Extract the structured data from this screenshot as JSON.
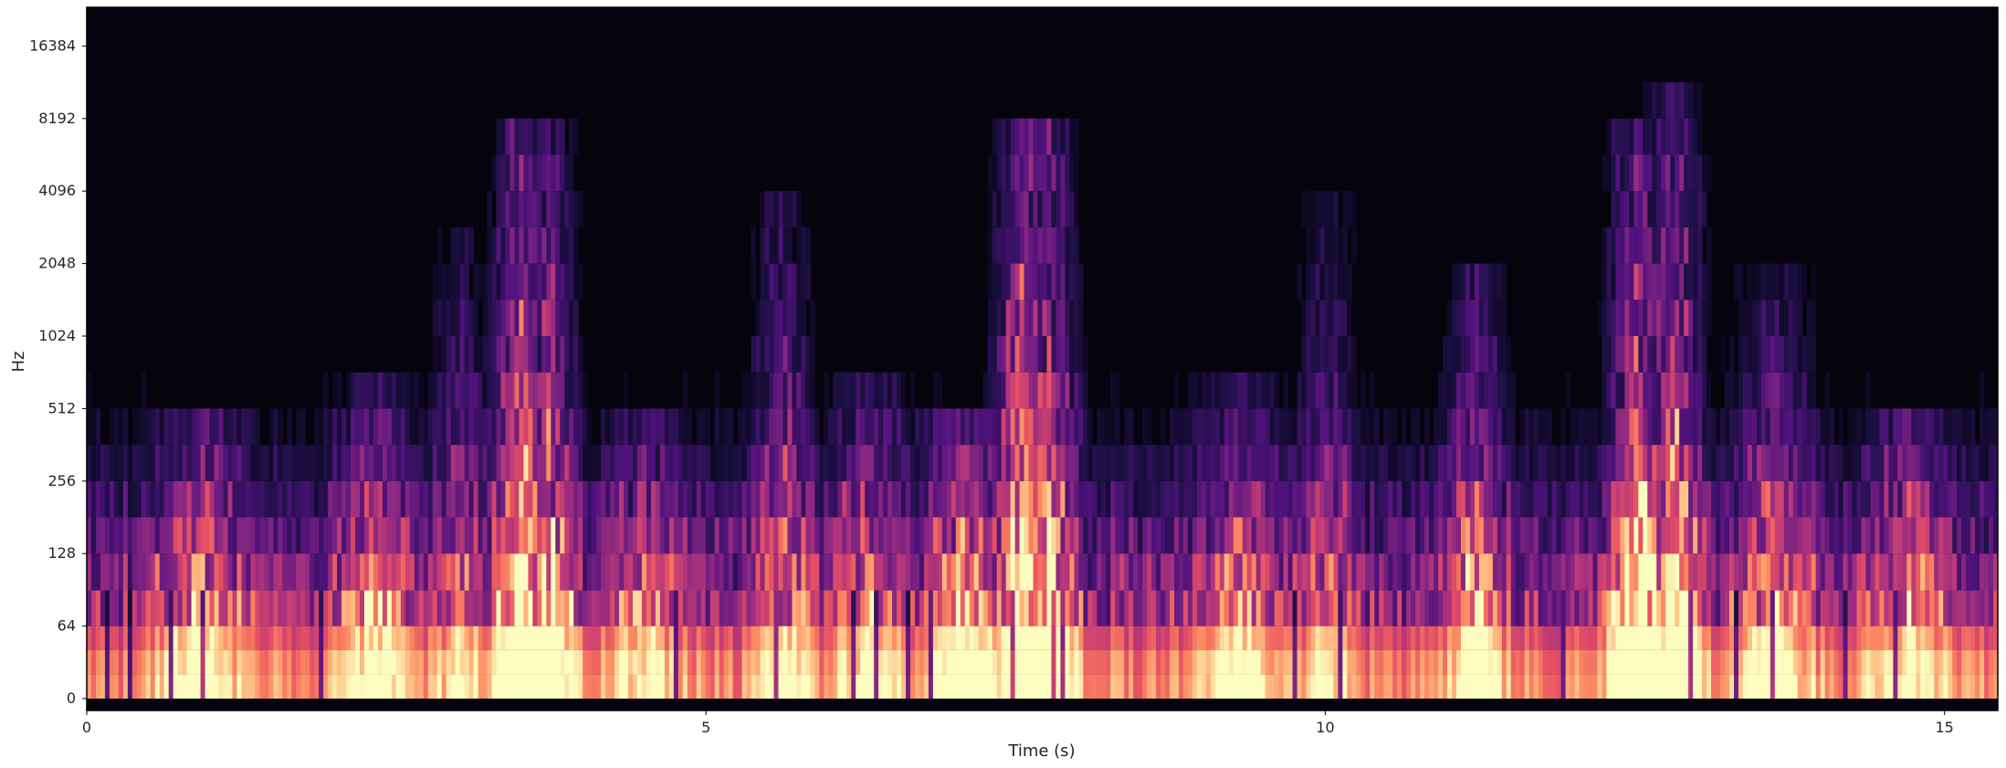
{
  "chart_data": {
    "type": "heatmap",
    "title": "",
    "xlabel": "Time (s)",
    "ylabel": "Hz",
    "x_ticks": [
      0,
      5,
      10,
      15
    ],
    "y_ticks": [
      "0",
      "64",
      "128",
      "256",
      "512",
      "1024",
      "2048",
      "4096",
      "8192",
      "16384"
    ],
    "xlim": [
      0,
      15.43
    ],
    "y_scale": "log2",
    "colormap": "magma",
    "grid": false,
    "legend": "none",
    "energy_events": [
      {
        "time": 0.9,
        "top_hz": 600,
        "strength": 0.55
      },
      {
        "time": 2.3,
        "top_hz": 800,
        "strength": 0.45
      },
      {
        "time": 3.0,
        "top_hz": 3000,
        "strength": 0.4
      },
      {
        "time": 3.5,
        "top_hz": 8192,
        "strength": 0.95
      },
      {
        "time": 3.7,
        "top_hz": 8192,
        "strength": 0.75
      },
      {
        "time": 4.5,
        "top_hz": 500,
        "strength": 0.4
      },
      {
        "time": 5.6,
        "top_hz": 4500,
        "strength": 0.5
      },
      {
        "time": 6.3,
        "top_hz": 700,
        "strength": 0.45
      },
      {
        "time": 7.05,
        "top_hz": 600,
        "strength": 0.55
      },
      {
        "time": 7.55,
        "top_hz": 8192,
        "strength": 1.0
      },
      {
        "time": 7.75,
        "top_hz": 8192,
        "strength": 0.8
      },
      {
        "time": 9.3,
        "top_hz": 700,
        "strength": 0.45
      },
      {
        "time": 10.0,
        "top_hz": 4800,
        "strength": 0.4
      },
      {
        "time": 11.2,
        "top_hz": 2200,
        "strength": 0.6
      },
      {
        "time": 12.5,
        "top_hz": 8192,
        "strength": 0.9
      },
      {
        "time": 12.8,
        "top_hz": 10000,
        "strength": 0.85
      },
      {
        "time": 13.6,
        "top_hz": 1800,
        "strength": 0.5
      },
      {
        "time": 14.7,
        "top_hz": 600,
        "strength": 0.5
      }
    ],
    "colors": {
      "background": "#ffffff",
      "plot_floor": "#05040d",
      "text": "#262626",
      "spine": "#000000"
    }
  }
}
